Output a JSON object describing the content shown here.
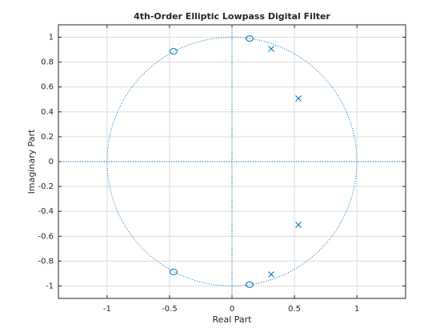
{
  "chart_data": {
    "type": "scatter",
    "title": "4th-Order Elliptic Lowpass Digital Filter",
    "x_label": "Real Part",
    "y_label": "Imaginary Part",
    "xlim": [
      -1.39,
      1.39
    ],
    "ylim": [
      -1.1,
      1.1
    ],
    "xticks": [
      -1,
      -0.5,
      0,
      0.5,
      1
    ],
    "yticks": [
      -1,
      -0.8,
      -0.6,
      -0.4,
      -0.2,
      0,
      0.2,
      0.4,
      0.6,
      0.8,
      1
    ],
    "grid": true,
    "unit_circle": true,
    "color": "#0072bd",
    "series": [
      {
        "marker": "o",
        "color": "#0072bd",
        "x": [
          -0.468,
          -0.468,
          0.141,
          0.141
        ],
        "values": [
          0.887,
          -0.887,
          0.99,
          -0.99
        ]
      },
      {
        "marker": "x",
        "color": "#0072bd",
        "x": [
          0.314,
          0.314,
          0.532,
          0.532
        ],
        "values": [
          0.907,
          -0.907,
          0.508,
          -0.508
        ]
      }
    ]
  }
}
